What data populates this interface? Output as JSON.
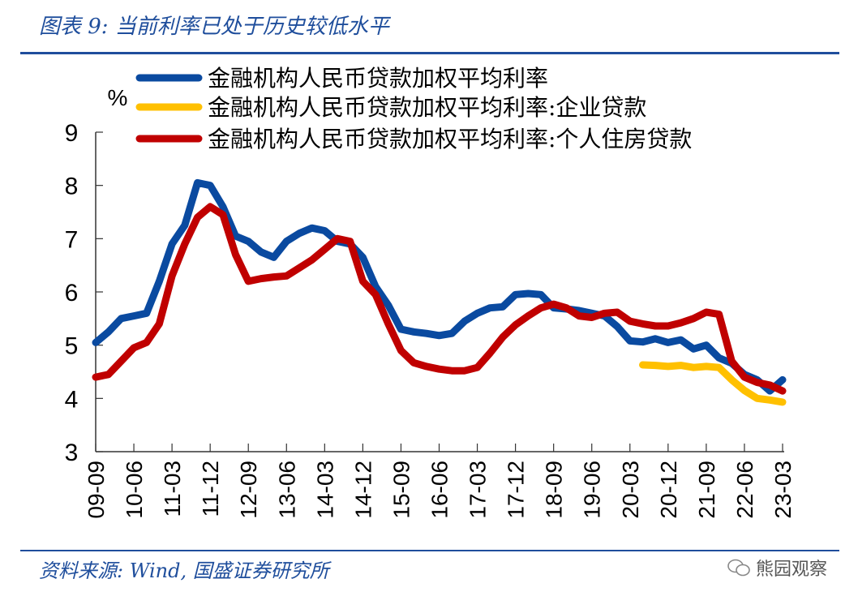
{
  "title": "图表 9: 当前利率已处于历史较低水平",
  "source": "资料来源: Wind, 国盛证券研究所",
  "watermark": "熊园观察",
  "chart_data": {
    "type": "line",
    "ylabel": "%",
    "ylim": [
      3,
      9
    ],
    "yticks": [
      3,
      4,
      5,
      6,
      7,
      8,
      9
    ],
    "grid": false,
    "legend": "top",
    "x": [
      "09-09",
      "09-12",
      "10-03",
      "10-06",
      "10-09",
      "10-12",
      "11-03",
      "11-06",
      "11-09",
      "11-12",
      "12-03",
      "12-06",
      "12-09",
      "12-12",
      "13-03",
      "13-06",
      "13-09",
      "13-12",
      "14-03",
      "14-06",
      "14-09",
      "14-12",
      "15-03",
      "15-06",
      "15-09",
      "15-12",
      "16-03",
      "16-06",
      "16-09",
      "16-12",
      "17-03",
      "17-06",
      "17-09",
      "17-12",
      "18-03",
      "18-06",
      "18-09",
      "18-12",
      "19-03",
      "19-06",
      "19-09",
      "19-12",
      "20-03",
      "20-06",
      "20-09",
      "20-12",
      "21-03",
      "21-06",
      "21-09",
      "21-12",
      "22-03",
      "22-06",
      "22-09",
      "22-12",
      "23-03"
    ],
    "xticks": [
      "09-09",
      "10-06",
      "11-03",
      "11-12",
      "12-09",
      "13-06",
      "14-03",
      "14-12",
      "15-09",
      "16-06",
      "17-03",
      "17-12",
      "18-09",
      "19-06",
      "20-03",
      "20-12",
      "21-09",
      "22-06",
      "23-03"
    ],
    "series": [
      {
        "name": "金融机构人民币贷款加权平均利率",
        "color": "#0a4aa0",
        "values": [
          5.05,
          5.25,
          5.5,
          5.55,
          5.6,
          6.2,
          6.9,
          7.25,
          8.05,
          8.0,
          7.6,
          7.05,
          6.95,
          6.75,
          6.65,
          6.95,
          7.1,
          7.2,
          7.15,
          6.95,
          6.9,
          6.65,
          6.1,
          5.75,
          5.3,
          5.25,
          5.22,
          5.18,
          5.22,
          5.45,
          5.6,
          5.7,
          5.72,
          5.95,
          5.97,
          5.95,
          5.7,
          5.68,
          5.65,
          5.6,
          5.55,
          5.35,
          5.08,
          5.06,
          5.12,
          5.05,
          5.1,
          4.93,
          5.0,
          4.76,
          4.66,
          4.45,
          4.35,
          4.14,
          4.35
        ]
      },
      {
        "name": "金融机构人民币贷款加权平均利率:企业贷款",
        "color": "#ffc000",
        "values": [
          null,
          null,
          null,
          null,
          null,
          null,
          null,
          null,
          null,
          null,
          null,
          null,
          null,
          null,
          null,
          null,
          null,
          null,
          null,
          null,
          null,
          null,
          null,
          null,
          null,
          null,
          null,
          null,
          null,
          null,
          null,
          null,
          null,
          null,
          null,
          null,
          null,
          null,
          null,
          null,
          null,
          null,
          null,
          4.63,
          4.62,
          4.6,
          4.62,
          4.58,
          4.6,
          4.58,
          4.35,
          4.15,
          4.0,
          3.97,
          3.93
        ]
      },
      {
        "name": "金融机构人民币贷款加权平均利率:个人住房贷款",
        "color": "#c00000",
        "values": [
          4.4,
          4.45,
          4.7,
          4.95,
          5.05,
          5.4,
          6.3,
          6.9,
          7.4,
          7.6,
          7.45,
          6.7,
          6.2,
          6.25,
          6.28,
          6.3,
          6.45,
          6.6,
          6.8,
          7.0,
          6.95,
          6.2,
          5.95,
          5.4,
          4.9,
          4.67,
          4.6,
          4.55,
          4.52,
          4.52,
          4.58,
          4.85,
          5.15,
          5.38,
          5.55,
          5.7,
          5.77,
          5.7,
          5.55,
          5.52,
          5.6,
          5.62,
          5.45,
          5.4,
          5.36,
          5.36,
          5.42,
          5.5,
          5.62,
          5.58,
          4.7,
          4.4,
          4.3,
          4.25,
          4.14
        ]
      }
    ]
  }
}
